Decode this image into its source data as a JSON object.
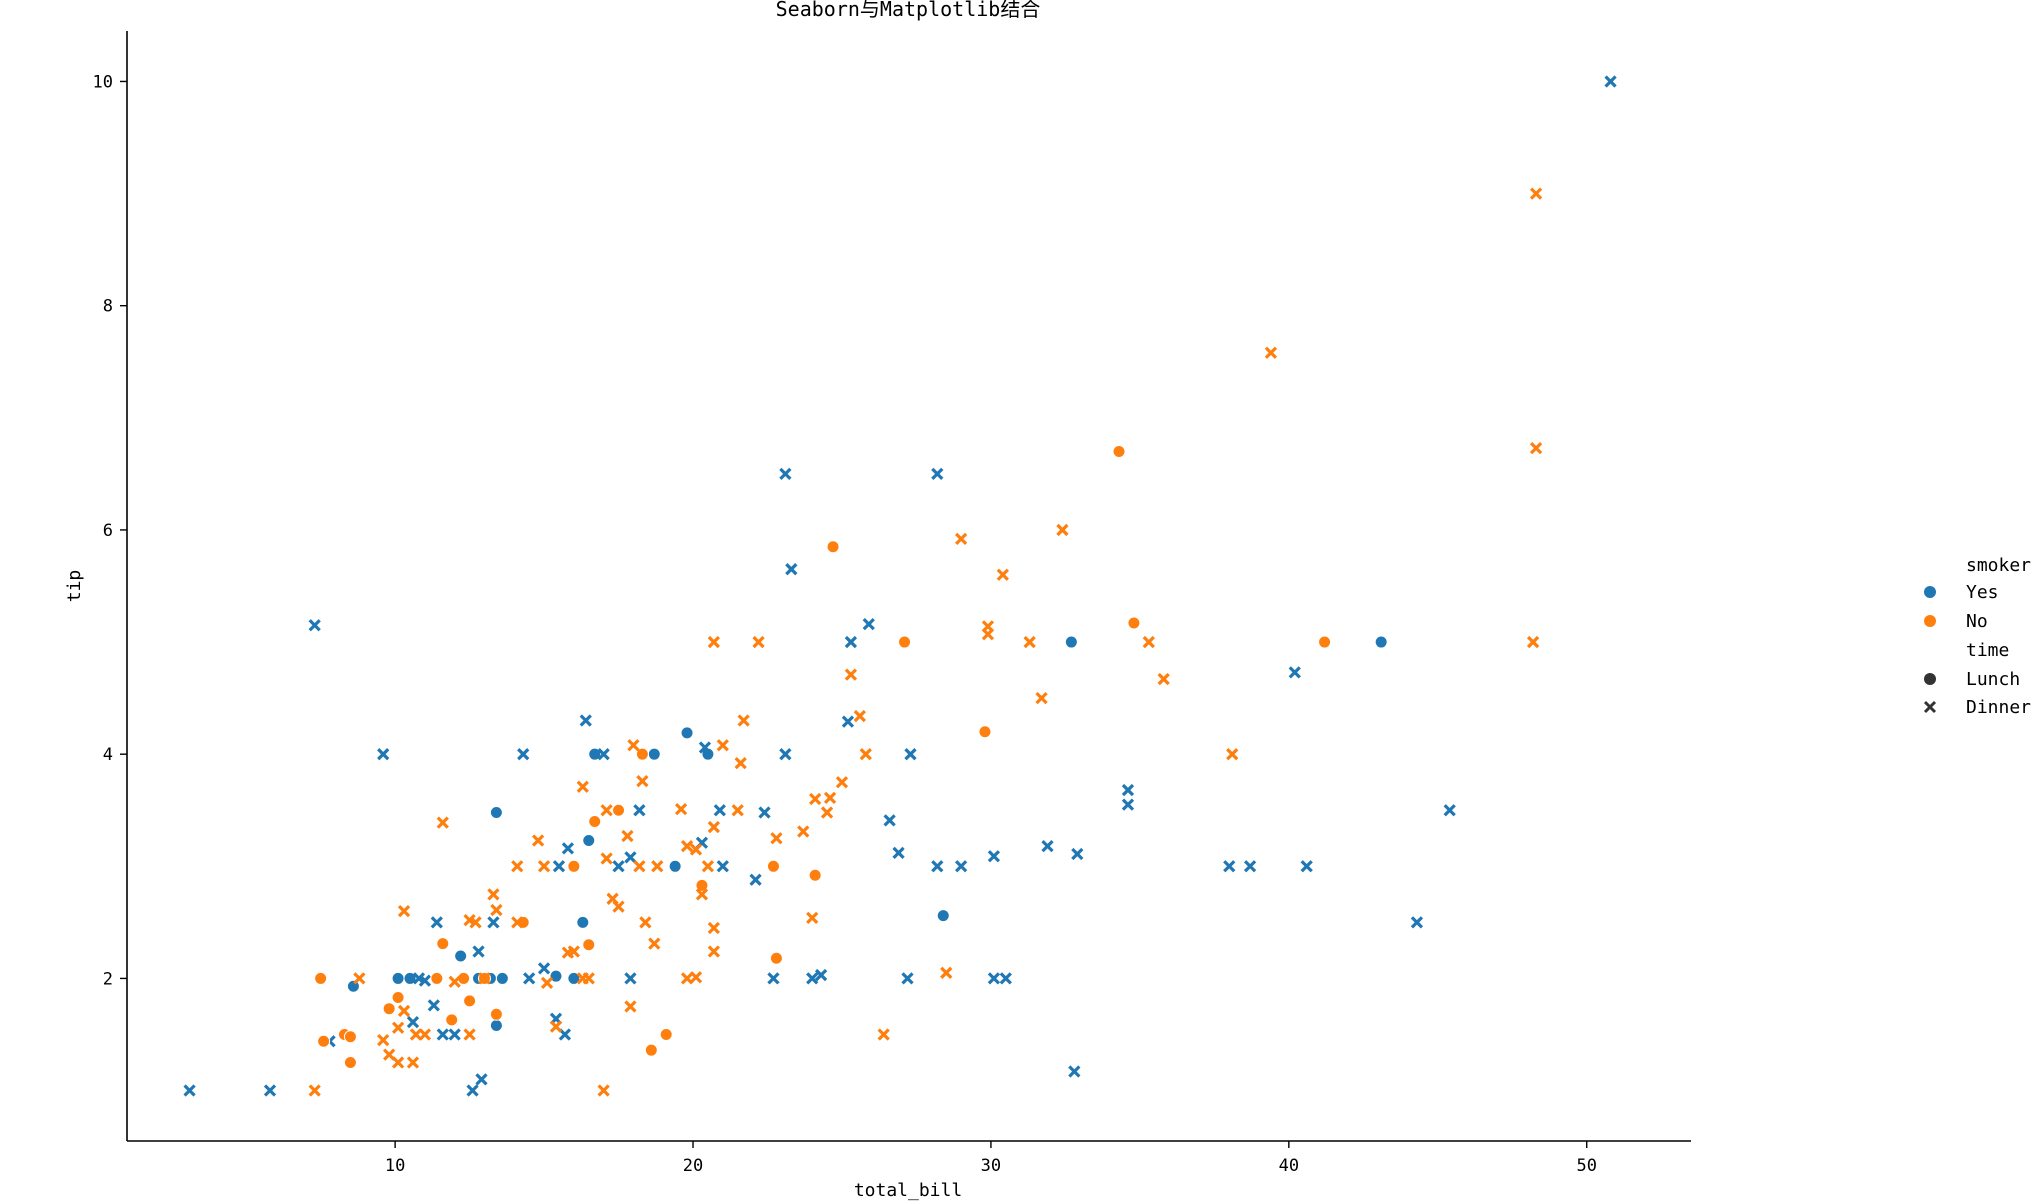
{
  "chart_data": {
    "type": "scatter",
    "title": "Seaborn与Matplotlib结合",
    "xlabel": "total_bill",
    "ylabel": "tip",
    "xlim": [
      1.0,
      53.5
    ],
    "ylim": [
      0.55,
      10.45
    ],
    "xticks": [
      10,
      20,
      30,
      40,
      50
    ],
    "yticks": [
      2,
      4,
      6,
      8,
      10
    ],
    "grid": false,
    "legend_position": "right",
    "colors": {
      "Yes": "#1f77b4",
      "No": "#ff7f0e"
    },
    "legend": {
      "hue_title": "smoker",
      "hue_entries": [
        "Yes",
        "No"
      ],
      "style_title": "time",
      "style_entries": [
        "Lunch",
        "Dinner"
      ]
    },
    "series": [
      {
        "name": "Yes / Lunch",
        "smoker": "Yes",
        "time": "Lunch",
        "marker": "circle",
        "color": "#1f77b4",
        "points": [
          [
            8.6,
            1.93
          ],
          [
            10.1,
            2.0
          ],
          [
            10.5,
            2.0
          ],
          [
            12.2,
            2.2
          ],
          [
            12.8,
            2.0
          ],
          [
            13.2,
            2.0
          ],
          [
            13.4,
            3.48
          ],
          [
            13.4,
            1.58
          ],
          [
            13.6,
            2.0
          ],
          [
            15.4,
            2.02
          ],
          [
            16.0,
            2.0
          ],
          [
            16.3,
            2.5
          ],
          [
            16.5,
            3.23
          ],
          [
            16.7,
            4.0
          ],
          [
            18.7,
            4.0
          ],
          [
            19.4,
            3.0
          ],
          [
            19.8,
            4.19
          ],
          [
            20.5,
            4.0
          ],
          [
            28.4,
            2.56
          ],
          [
            32.7,
            5.0
          ],
          [
            43.1,
            5.0
          ]
        ]
      },
      {
        "name": "Yes / Dinner",
        "smoker": "Yes",
        "time": "Dinner",
        "marker": "x",
        "color": "#1f77b4",
        "points": [
          [
            3.1,
            1.0
          ],
          [
            5.8,
            1.0
          ],
          [
            7.3,
            5.15
          ],
          [
            7.8,
            1.44
          ],
          [
            9.6,
            4.0
          ],
          [
            10.6,
            1.61
          ],
          [
            10.8,
            2.0
          ],
          [
            11.0,
            1.98
          ],
          [
            11.3,
            1.76
          ],
          [
            11.4,
            2.5
          ],
          [
            11.6,
            1.5
          ],
          [
            12.0,
            1.5
          ],
          [
            12.6,
            1.0
          ],
          [
            12.8,
            2.24
          ],
          [
            12.9,
            1.1
          ],
          [
            13.3,
            2.5
          ],
          [
            14.3,
            4.0
          ],
          [
            14.5,
            2.0
          ],
          [
            15.0,
            2.09
          ],
          [
            15.4,
            1.64
          ],
          [
            15.5,
            3.0
          ],
          [
            15.7,
            1.5
          ],
          [
            15.8,
            3.16
          ],
          [
            16.4,
            4.3
          ],
          [
            17.0,
            4.0
          ],
          [
            17.5,
            3.0
          ],
          [
            17.9,
            3.08
          ],
          [
            17.9,
            2.0
          ],
          [
            18.2,
            3.5
          ],
          [
            20.3,
            3.21
          ],
          [
            20.4,
            4.06
          ],
          [
            20.9,
            3.5
          ],
          [
            21.0,
            3.0
          ],
          [
            22.1,
            2.88
          ],
          [
            22.4,
            3.48
          ],
          [
            22.7,
            2.0
          ],
          [
            23.1,
            4.0
          ],
          [
            23.1,
            6.5
          ],
          [
            23.3,
            5.65
          ],
          [
            24.0,
            2.0
          ],
          [
            24.3,
            2.03
          ],
          [
            25.2,
            4.29
          ],
          [
            25.3,
            5.0
          ],
          [
            25.9,
            5.16
          ],
          [
            26.6,
            3.41
          ],
          [
            26.9,
            3.12
          ],
          [
            27.2,
            2.0
          ],
          [
            27.3,
            4.0
          ],
          [
            28.2,
            3.0
          ],
          [
            28.2,
            6.5
          ],
          [
            29.0,
            3.0
          ],
          [
            30.1,
            2.0
          ],
          [
            30.1,
            3.09
          ],
          [
            30.5,
            2.0
          ],
          [
            31.9,
            3.18
          ],
          [
            32.8,
            1.17
          ],
          [
            32.9,
            3.11
          ],
          [
            34.6,
            3.55
          ],
          [
            34.6,
            3.68
          ],
          [
            38.0,
            3.0
          ],
          [
            38.7,
            3.0
          ],
          [
            40.2,
            4.73
          ],
          [
            40.6,
            3.0
          ],
          [
            44.3,
            2.5
          ],
          [
            45.4,
            3.5
          ],
          [
            50.8,
            10.0
          ]
        ]
      },
      {
        "name": "No / Lunch",
        "smoker": "No",
        "time": "Lunch",
        "marker": "circle",
        "color": "#ff7f0e",
        "points": [
          [
            7.5,
            2.0
          ],
          [
            7.6,
            1.44
          ],
          [
            8.3,
            1.5
          ],
          [
            8.5,
            1.48
          ],
          [
            8.5,
            1.25
          ],
          [
            9.8,
            1.73
          ],
          [
            10.1,
            1.83
          ],
          [
            11.4,
            2.0
          ],
          [
            11.6,
            2.31
          ],
          [
            11.9,
            1.63
          ],
          [
            12.3,
            2.0
          ],
          [
            12.5,
            1.8
          ],
          [
            13.0,
            2.0
          ],
          [
            13.4,
            1.68
          ],
          [
            14.3,
            2.5
          ],
          [
            16.0,
            3.0
          ],
          [
            16.5,
            2.3
          ],
          [
            16.7,
            3.4
          ],
          [
            17.5,
            3.5
          ],
          [
            18.3,
            4.0
          ],
          [
            18.6,
            1.36
          ],
          [
            19.1,
            1.5
          ],
          [
            20.3,
            2.83
          ],
          [
            22.7,
            3.0
          ],
          [
            22.8,
            2.18
          ],
          [
            24.1,
            2.92
          ],
          [
            24.7,
            5.85
          ],
          [
            27.1,
            5.0
          ],
          [
            29.8,
            4.2
          ],
          [
            34.3,
            6.7
          ],
          [
            34.8,
            5.17
          ],
          [
            41.2,
            5.0
          ]
        ]
      },
      {
        "name": "No / Dinner",
        "smoker": "No",
        "time": "Dinner",
        "marker": "x",
        "color": "#ff7f0e",
        "points": [
          [
            7.3,
            1.0
          ],
          [
            8.8,
            2.0
          ],
          [
            9.6,
            1.45
          ],
          [
            9.8,
            1.32
          ],
          [
            10.1,
            1.56
          ],
          [
            10.1,
            1.25
          ],
          [
            10.3,
            1.71
          ],
          [
            10.3,
            2.6
          ],
          [
            10.6,
            1.25
          ],
          [
            10.7,
            1.5
          ],
          [
            11.0,
            1.5
          ],
          [
            11.6,
            3.39
          ],
          [
            12.0,
            1.97
          ],
          [
            12.5,
            2.52
          ],
          [
            12.5,
            1.5
          ],
          [
            12.7,
            2.5
          ],
          [
            13.0,
            2.0
          ],
          [
            13.3,
            2.75
          ],
          [
            13.4,
            2.61
          ],
          [
            14.1,
            3.0
          ],
          [
            14.1,
            2.5
          ],
          [
            14.8,
            3.23
          ],
          [
            15.0,
            3.0
          ],
          [
            15.1,
            1.96
          ],
          [
            15.4,
            1.57
          ],
          [
            15.8,
            2.23
          ],
          [
            16.0,
            2.24
          ],
          [
            16.3,
            3.71
          ],
          [
            16.3,
            2.0
          ],
          [
            16.5,
            2.0
          ],
          [
            17.0,
            1.0
          ],
          [
            17.1,
            3.5
          ],
          [
            17.1,
            3.07
          ],
          [
            17.3,
            2.71
          ],
          [
            17.5,
            2.64
          ],
          [
            17.8,
            3.27
          ],
          [
            17.9,
            1.75
          ],
          [
            18.0,
            4.08
          ],
          [
            18.2,
            3.0
          ],
          [
            18.3,
            3.76
          ],
          [
            18.4,
            2.5
          ],
          [
            18.7,
            2.31
          ],
          [
            18.8,
            3.0
          ],
          [
            19.6,
            3.51
          ],
          [
            19.8,
            3.18
          ],
          [
            19.8,
            2.0
          ],
          [
            20.1,
            3.15
          ],
          [
            20.3,
            2.75
          ],
          [
            20.5,
            3.0
          ],
          [
            20.7,
            3.35
          ],
          [
            20.7,
            2.45
          ],
          [
            21.0,
            4.08
          ],
          [
            21.5,
            3.5
          ],
          [
            21.6,
            3.92
          ],
          [
            21.7,
            4.3
          ],
          [
            22.2,
            5.0
          ],
          [
            22.8,
            3.25
          ],
          [
            23.7,
            3.31
          ],
          [
            24.0,
            2.54
          ],
          [
            24.1,
            3.6
          ],
          [
            24.5,
            3.48
          ],
          [
            24.6,
            3.61
          ],
          [
            25.0,
            3.75
          ],
          [
            25.3,
            4.71
          ],
          [
            25.6,
            4.34
          ],
          [
            25.8,
            4.0
          ],
          [
            26.4,
            1.5
          ],
          [
            28.5,
            2.05
          ],
          [
            29.0,
            5.92
          ],
          [
            29.9,
            5.07
          ],
          [
            29.9,
            5.14
          ],
          [
            30.4,
            5.6
          ],
          [
            31.3,
            5.0
          ],
          [
            31.7,
            4.5
          ],
          [
            32.4,
            6.0
          ],
          [
            35.3,
            5.0
          ],
          [
            35.8,
            4.67
          ],
          [
            38.1,
            4.0
          ],
          [
            39.4,
            7.58
          ],
          [
            48.2,
            5.0
          ],
          [
            48.3,
            6.73
          ],
          [
            48.3,
            9.0
          ],
          [
            20.1,
            2.01
          ],
          [
            20.7,
            2.24
          ],
          [
            20.7,
            5.0
          ]
        ]
      }
    ]
  }
}
